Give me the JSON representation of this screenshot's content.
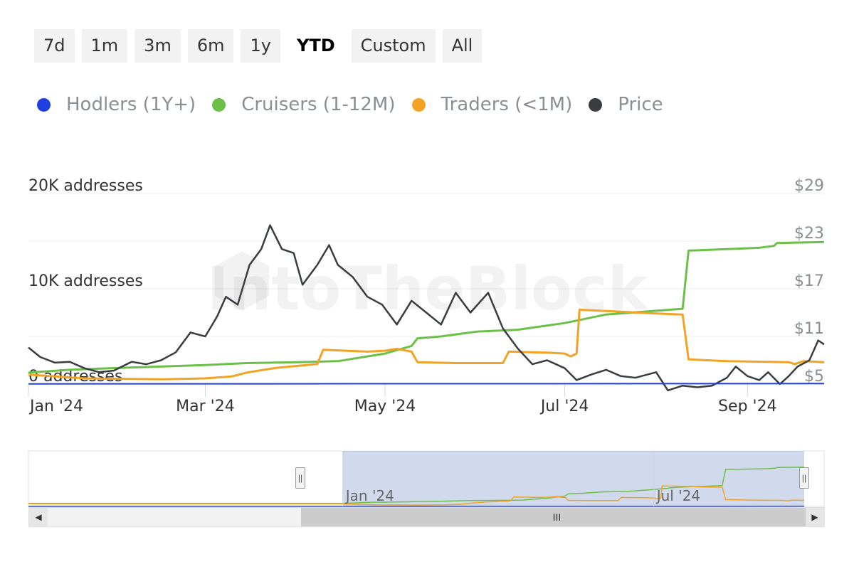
{
  "range_selector": {
    "buttons": [
      "7d",
      "1m",
      "3m",
      "6m",
      "1y",
      "YTD",
      "Custom",
      "All"
    ],
    "active": "YTD"
  },
  "legend": {
    "items": [
      {
        "label": "Hodlers (1Y+)",
        "color": "#1f3fe0",
        "icon": "circle-icon"
      },
      {
        "label": "Cruisers (1-12M)",
        "color": "#6cc04a",
        "icon": "circle-icon"
      },
      {
        "label": "Traders (<1M)",
        "color": "#f2a324",
        "icon": "circle-icon"
      },
      {
        "label": "Price",
        "color": "#3a3d40",
        "icon": "circle-icon"
      }
    ]
  },
  "watermark": "IntoTheBlock",
  "chart_data": {
    "type": "line",
    "x_axis": {
      "type": "date",
      "range": [
        "2024-01-01",
        "2024-09-27"
      ],
      "tick_labels": [
        "Jan '24",
        "Mar '24",
        "May '24",
        "Jul '24",
        "Sep '24"
      ],
      "tick_dates": [
        "2024-01-01",
        "2024-03-01",
        "2024-05-01",
        "2024-07-01",
        "2024-09-01"
      ]
    },
    "y_axis_left": {
      "tick_labels": [
        "0 addresses",
        "10K addresses",
        "20K addresses"
      ],
      "ticks": [
        0,
        10000,
        20000
      ],
      "range": [
        0,
        20000
      ]
    },
    "y_axis_right": {
      "tick_labels": [
        "$5",
        "$11",
        "$17",
        "$23",
        "$29"
      ],
      "ticks": [
        5,
        11,
        17,
        23,
        29
      ],
      "range": [
        5,
        29
      ]
    },
    "grid": true,
    "legend_position": "top",
    "series": [
      {
        "name": "Hodlers (1Y+)",
        "axis": "left",
        "color": "#1f3fe0",
        "points": [
          [
            "2024-01-01",
            20
          ],
          [
            "2024-09-27",
            50
          ]
        ]
      },
      {
        "name": "Cruisers (1-12M)",
        "axis": "left",
        "color": "#6cc04a",
        "points": [
          [
            "2024-01-01",
            1200
          ],
          [
            "2024-01-15",
            1500
          ],
          [
            "2024-02-01",
            1700
          ],
          [
            "2024-03-01",
            2000
          ],
          [
            "2024-03-15",
            2200
          ],
          [
            "2024-04-01",
            2300
          ],
          [
            "2024-04-15",
            2400
          ],
          [
            "2024-05-01",
            3200
          ],
          [
            "2024-05-10",
            4000
          ],
          [
            "2024-05-12",
            4800
          ],
          [
            "2024-05-20",
            5000
          ],
          [
            "2024-06-01",
            5500
          ],
          [
            "2024-06-15",
            5700
          ],
          [
            "2024-07-01",
            6400
          ],
          [
            "2024-07-15",
            7300
          ],
          [
            "2024-08-10",
            7900
          ],
          [
            "2024-08-12",
            14000
          ],
          [
            "2024-08-20",
            14100
          ],
          [
            "2024-09-05",
            14300
          ],
          [
            "2024-09-10",
            14500
          ],
          [
            "2024-09-11",
            14800
          ],
          [
            "2024-09-27",
            14900
          ]
        ]
      },
      {
        "name": "Traders (<1M)",
        "axis": "left",
        "color": "#f2a324",
        "points": [
          [
            "2024-01-01",
            1000
          ],
          [
            "2024-01-20",
            600
          ],
          [
            "2024-02-15",
            500
          ],
          [
            "2024-03-01",
            600
          ],
          [
            "2024-03-10",
            800
          ],
          [
            "2024-03-15",
            1200
          ],
          [
            "2024-03-25",
            1700
          ],
          [
            "2024-04-08",
            2100
          ],
          [
            "2024-04-10",
            3600
          ],
          [
            "2024-04-25",
            3400
          ],
          [
            "2024-05-01",
            3500
          ],
          [
            "2024-05-05",
            3700
          ],
          [
            "2024-05-10",
            3400
          ],
          [
            "2024-05-12",
            2300
          ],
          [
            "2024-05-25",
            2200
          ],
          [
            "2024-06-10",
            2200
          ],
          [
            "2024-06-12",
            3400
          ],
          [
            "2024-06-25",
            3300
          ],
          [
            "2024-07-01",
            3200
          ],
          [
            "2024-07-03",
            2900
          ],
          [
            "2024-07-05",
            3200
          ],
          [
            "2024-07-06",
            7800
          ],
          [
            "2024-07-20",
            7600
          ],
          [
            "2024-08-01",
            7400
          ],
          [
            "2024-08-10",
            7300
          ],
          [
            "2024-08-12",
            2600
          ],
          [
            "2024-08-25",
            2400
          ],
          [
            "2024-09-15",
            2300
          ],
          [
            "2024-09-17",
            2100
          ],
          [
            "2024-09-20",
            2400
          ],
          [
            "2024-09-27",
            2300
          ]
        ]
      },
      {
        "name": "Price",
        "axis": "right",
        "color": "#3a3d40",
        "points": [
          [
            "2024-01-01",
            9.6
          ],
          [
            "2024-01-05",
            8.4
          ],
          [
            "2024-01-10",
            7.7
          ],
          [
            "2024-01-15",
            7.8
          ],
          [
            "2024-01-20",
            7.0
          ],
          [
            "2024-01-25",
            6.5
          ],
          [
            "2024-01-30",
            6.7
          ],
          [
            "2024-02-05",
            7.8
          ],
          [
            "2024-02-10",
            7.5
          ],
          [
            "2024-02-15",
            8.0
          ],
          [
            "2024-02-20",
            9.0
          ],
          [
            "2024-02-25",
            11.5
          ],
          [
            "2024-03-01",
            11.0
          ],
          [
            "2024-03-05",
            13.5
          ],
          [
            "2024-03-08",
            16.0
          ],
          [
            "2024-03-12",
            15.0
          ],
          [
            "2024-03-16",
            20.0
          ],
          [
            "2024-03-20",
            22.0
          ],
          [
            "2024-03-23",
            25.0
          ],
          [
            "2024-03-27",
            22.0
          ],
          [
            "2024-03-31",
            21.5
          ],
          [
            "2024-04-03",
            17.5
          ],
          [
            "2024-04-08",
            20.0
          ],
          [
            "2024-04-12",
            22.5
          ],
          [
            "2024-04-15",
            20.0
          ],
          [
            "2024-04-20",
            18.5
          ],
          [
            "2024-04-25",
            16.0
          ],
          [
            "2024-04-30",
            15.0
          ],
          [
            "2024-05-05",
            12.5
          ],
          [
            "2024-05-10",
            15.5
          ],
          [
            "2024-05-15",
            14.0
          ],
          [
            "2024-05-20",
            12.5
          ],
          [
            "2024-05-25",
            16.5
          ],
          [
            "2024-05-30",
            14.0
          ],
          [
            "2024-06-05",
            16.5
          ],
          [
            "2024-06-10",
            12.0
          ],
          [
            "2024-06-15",
            9.5
          ],
          [
            "2024-06-20",
            7.5
          ],
          [
            "2024-06-25",
            8.0
          ],
          [
            "2024-07-01",
            7.0
          ],
          [
            "2024-07-05",
            5.5
          ],
          [
            "2024-07-10",
            6.2
          ],
          [
            "2024-07-15",
            6.8
          ],
          [
            "2024-07-20",
            6.0
          ],
          [
            "2024-07-25",
            5.8
          ],
          [
            "2024-08-01",
            6.5
          ],
          [
            "2024-08-05",
            4.2
          ],
          [
            "2024-08-10",
            4.8
          ],
          [
            "2024-08-15",
            4.6
          ],
          [
            "2024-08-20",
            4.8
          ],
          [
            "2024-08-25",
            5.8
          ],
          [
            "2024-08-28",
            7.2
          ],
          [
            "2024-09-01",
            6.0
          ],
          [
            "2024-09-05",
            5.5
          ],
          [
            "2024-09-08",
            6.5
          ],
          [
            "2024-09-12",
            5.0
          ],
          [
            "2024-09-15",
            6.0
          ],
          [
            "2024-09-18",
            7.2
          ],
          [
            "2024-09-22",
            8.0
          ],
          [
            "2024-09-25",
            10.5
          ],
          [
            "2024-09-27",
            10.0
          ]
        ]
      }
    ]
  },
  "navigator": {
    "tick_labels": [
      "Jan '24",
      "Jul '24"
    ]
  },
  "scrollbar": {
    "left_arrow": "◀",
    "right_arrow": "▶",
    "thumb_grip": "III",
    "handle_grip": "||"
  }
}
